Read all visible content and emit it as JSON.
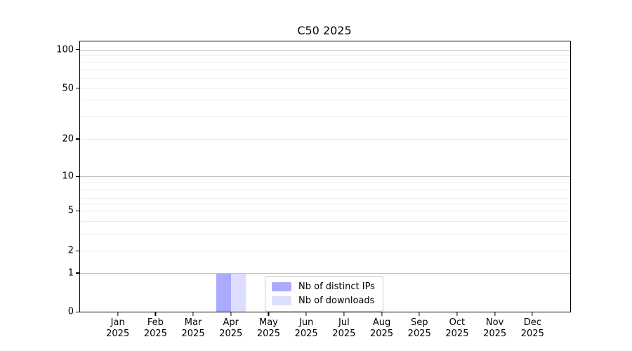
{
  "title": "C50 2025",
  "chart_data": {
    "type": "bar",
    "title": "C50 2025",
    "categories": [
      "Jan 2025",
      "Feb 2025",
      "Mar 2025",
      "Apr 2025",
      "May 2025",
      "Jun 2025",
      "Jul 2025",
      "Aug 2025",
      "Sep 2025",
      "Oct 2025",
      "Nov 2025",
      "Dec 2025"
    ],
    "series": [
      {
        "name": "Nb of distinct IPs",
        "color": "#aaaaff",
        "values": [
          0,
          0,
          0,
          1,
          0,
          0,
          0,
          0,
          0,
          0,
          0,
          0
        ]
      },
      {
        "name": "Nb of downloads",
        "color": "#ddddff",
        "values": [
          0,
          0,
          0,
          1,
          0,
          0,
          0,
          0,
          0,
          0,
          0,
          0
        ]
      }
    ],
    "xlabel": "",
    "ylabel": "",
    "yscale": "symlog",
    "ytick_values": [
      0,
      1,
      2,
      5,
      10,
      20,
      50,
      100
    ],
    "ylim": [
      0,
      140
    ],
    "grid": "horizontal major and minor gridlines",
    "legend_position": "lower center inside plot"
  },
  "colors": {
    "bar_distinct_ips": "#aaaaff",
    "bar_downloads": "#ddddff",
    "grid_major": "#c2c2c2",
    "grid_minor": "#ececec",
    "spine": "#000000",
    "legend_border": "#cccccc",
    "text": "#000000"
  },
  "y_axis": {
    "ticks": [
      {
        "label": "100",
        "pct": 3.0,
        "major": true
      },
      {
        "label": "50",
        "pct": 17.3,
        "major": false
      },
      {
        "label": "20",
        "pct": 36.1,
        "major": false
      },
      {
        "label": "10",
        "pct": 49.9,
        "major": true
      },
      {
        "label": "5",
        "pct": 62.7,
        "major": false
      },
      {
        "label": "2",
        "pct": 77.5,
        "major": false
      },
      {
        "label": "1",
        "pct": 85.7,
        "major": true
      },
      {
        "label": "0",
        "pct": 100.0,
        "major": false
      }
    ],
    "minor_gridlines_pct": [
      5.1,
      7.5,
      10.3,
      13.4,
      21.6,
      27.5,
      52.3,
      54.9,
      58.0,
      60.1,
      66.6,
      71.3
    ]
  },
  "x_axis": {
    "ticks": [
      {
        "label": "Jan\n2025",
        "pct": 7.692
      },
      {
        "label": "Feb\n2025",
        "pct": 15.385
      },
      {
        "label": "Mar\n2025",
        "pct": 23.077
      },
      {
        "label": "Apr\n2025",
        "pct": 30.769
      },
      {
        "label": "May\n2025",
        "pct": 38.462
      },
      {
        "label": "Jun\n2025",
        "pct": 46.154
      },
      {
        "label": "Jul\n2025",
        "pct": 53.846
      },
      {
        "label": "Aug\n2025",
        "pct": 61.538
      },
      {
        "label": "Sep\n2025",
        "pct": 69.231
      },
      {
        "label": "Oct\n2025",
        "pct": 76.923
      },
      {
        "label": "Nov\n2025",
        "pct": 84.615
      },
      {
        "label": "Dec\n2025",
        "pct": 92.308
      }
    ]
  },
  "legend": {
    "items": [
      {
        "label": "Nb of distinct IPs",
        "color": "#aaaaff"
      },
      {
        "label": "Nb of downloads",
        "color": "#ddddff"
      }
    ]
  }
}
